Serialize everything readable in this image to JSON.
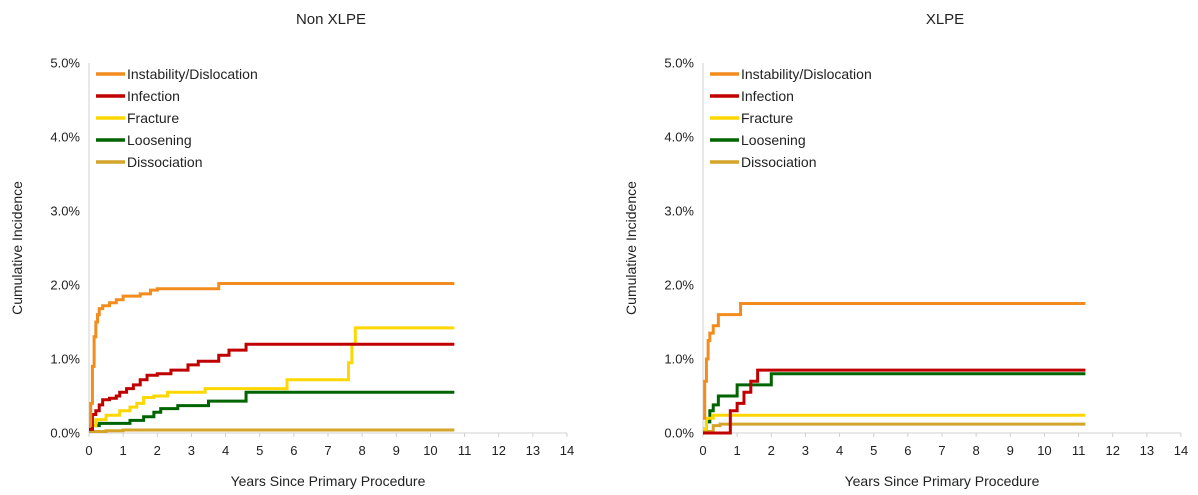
{
  "chart_data": [
    {
      "type": "line",
      "step": true,
      "title": "Non XLPE",
      "xlabel": "Years Since Primary Procedure",
      "ylabel": "Cumulative Incidence",
      "xlim": [
        0,
        14
      ],
      "ylim": [
        0,
        5
      ],
      "x_ticks": [
        "0",
        "1",
        "2",
        "3",
        "4",
        "5",
        "6",
        "7",
        "8",
        "9",
        "10",
        "11",
        "12",
        "13",
        "14"
      ],
      "y_ticks": [
        "0.0%",
        "1.0%",
        "2.0%",
        "3.0%",
        "4.0%",
        "5.0%"
      ],
      "grid": false,
      "legend_position": "top-left",
      "series": [
        {
          "name": "Instability/Dislocation",
          "color": "#F28C1E",
          "points": [
            [
              0,
              0.1
            ],
            [
              0.05,
              0.4
            ],
            [
              0.1,
              0.9
            ],
            [
              0.15,
              1.3
            ],
            [
              0.2,
              1.5
            ],
            [
              0.25,
              1.6
            ],
            [
              0.3,
              1.68
            ],
            [
              0.4,
              1.72
            ],
            [
              0.6,
              1.76
            ],
            [
              0.8,
              1.8
            ],
            [
              1.0,
              1.85
            ],
            [
              1.5,
              1.88
            ],
            [
              1.8,
              1.93
            ],
            [
              2.0,
              1.95
            ],
            [
              3.8,
              2.02
            ],
            [
              10.7,
              2.02
            ]
          ]
        },
        {
          "name": "Infection",
          "color": "#C00000",
          "points": [
            [
              0,
              0.05
            ],
            [
              0.1,
              0.25
            ],
            [
              0.2,
              0.3
            ],
            [
              0.3,
              0.38
            ],
            [
              0.4,
              0.45
            ],
            [
              0.6,
              0.47
            ],
            [
              0.8,
              0.5
            ],
            [
              0.9,
              0.55
            ],
            [
              1.1,
              0.6
            ],
            [
              1.3,
              0.65
            ],
            [
              1.5,
              0.72
            ],
            [
              1.7,
              0.78
            ],
            [
              2.0,
              0.8
            ],
            [
              2.4,
              0.85
            ],
            [
              2.9,
              0.92
            ],
            [
              3.2,
              0.97
            ],
            [
              3.8,
              1.05
            ],
            [
              4.1,
              1.12
            ],
            [
              4.6,
              1.2
            ],
            [
              10.7,
              1.2
            ]
          ]
        },
        {
          "name": "Fracture",
          "color": "#FFD700",
          "points": [
            [
              0,
              0.1
            ],
            [
              0.2,
              0.18
            ],
            [
              0.5,
              0.24
            ],
            [
              0.9,
              0.3
            ],
            [
              1.2,
              0.35
            ],
            [
              1.4,
              0.4
            ],
            [
              1.6,
              0.48
            ],
            [
              1.9,
              0.5
            ],
            [
              2.3,
              0.55
            ],
            [
              3.4,
              0.6
            ],
            [
              5.8,
              0.72
            ],
            [
              7.6,
              0.95
            ],
            [
              7.7,
              1.2
            ],
            [
              7.8,
              1.42
            ],
            [
              10.7,
              1.42
            ]
          ]
        },
        {
          "name": "Loosening",
          "color": "#006400",
          "points": [
            [
              0,
              0.05
            ],
            [
              0.1,
              0.1
            ],
            [
              0.3,
              0.13
            ],
            [
              1.2,
              0.17
            ],
            [
              1.6,
              0.22
            ],
            [
              1.9,
              0.28
            ],
            [
              2.1,
              0.33
            ],
            [
              2.6,
              0.37
            ],
            [
              3.5,
              0.43
            ],
            [
              4.6,
              0.55
            ],
            [
              10.7,
              0.55
            ]
          ]
        },
        {
          "name": "Dissociation",
          "color": "#D4A52A",
          "points": [
            [
              0,
              0.02
            ],
            [
              0.5,
              0.03
            ],
            [
              1.0,
              0.04
            ],
            [
              10.7,
              0.04
            ]
          ]
        }
      ]
    },
    {
      "type": "line",
      "step": true,
      "title": "XLPE",
      "xlabel": "Years Since Primary Procedure",
      "ylabel": "Cumulative Incidence",
      "xlim": [
        0,
        14
      ],
      "ylim": [
        0,
        5
      ],
      "x_ticks": [
        "0",
        "1",
        "2",
        "3",
        "4",
        "5",
        "6",
        "7",
        "8",
        "9",
        "10",
        "11",
        "12",
        "13",
        "14"
      ],
      "y_ticks": [
        "0.0%",
        "1.0%",
        "2.0%",
        "3.0%",
        "4.0%",
        "5.0%"
      ],
      "grid": false,
      "legend_position": "top-left",
      "series": [
        {
          "name": "Instability/Dislocation",
          "color": "#F28C1E",
          "points": [
            [
              0,
              0.2
            ],
            [
              0.05,
              0.7
            ],
            [
              0.1,
              1.0
            ],
            [
              0.15,
              1.25
            ],
            [
              0.2,
              1.35
            ],
            [
              0.3,
              1.45
            ],
            [
              0.45,
              1.6
            ],
            [
              1.1,
              1.75
            ],
            [
              11.2,
              1.75
            ]
          ]
        },
        {
          "name": "Infection",
          "color": "#C00000",
          "points": [
            [
              0,
              0.0
            ],
            [
              0.8,
              0.3
            ],
            [
              1.0,
              0.4
            ],
            [
              1.2,
              0.55
            ],
            [
              1.4,
              0.7
            ],
            [
              1.6,
              0.85
            ],
            [
              11.2,
              0.85
            ]
          ]
        },
        {
          "name": "Fracture",
          "color": "#FFD700",
          "points": [
            [
              0,
              0.05
            ],
            [
              0.1,
              0.2
            ],
            [
              0.3,
              0.24
            ],
            [
              11.2,
              0.24
            ]
          ]
        },
        {
          "name": "Loosening",
          "color": "#006400",
          "points": [
            [
              0,
              0.05
            ],
            [
              0.1,
              0.15
            ],
            [
              0.2,
              0.3
            ],
            [
              0.3,
              0.38
            ],
            [
              0.45,
              0.5
            ],
            [
              1.0,
              0.65
            ],
            [
              2.0,
              0.8
            ],
            [
              11.2,
              0.8
            ]
          ]
        },
        {
          "name": "Dissociation",
          "color": "#D4A52A",
          "points": [
            [
              0,
              0.02
            ],
            [
              0.3,
              0.1
            ],
            [
              0.5,
              0.12
            ],
            [
              11.2,
              0.12
            ]
          ]
        }
      ]
    }
  ]
}
